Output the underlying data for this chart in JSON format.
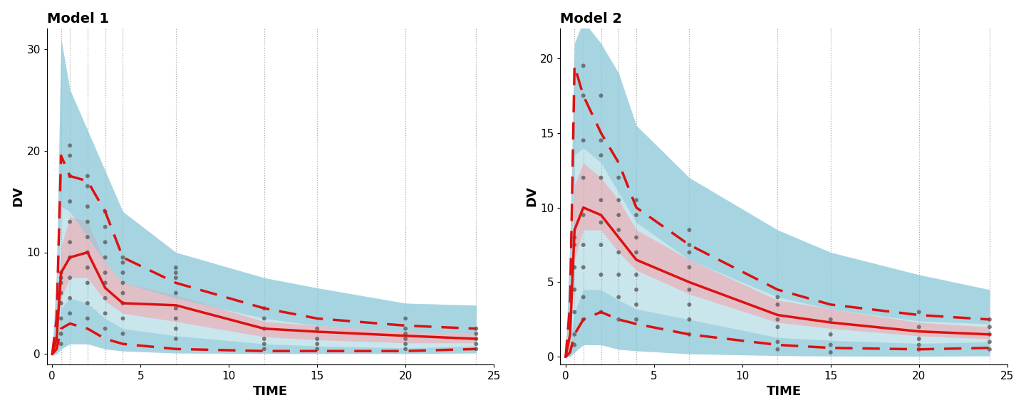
{
  "model1": {
    "title": "Model 1",
    "xlabel": "TIME",
    "ylabel": "DV",
    "ylim": [
      -1,
      32
    ],
    "xlim": [
      -0.3,
      25
    ],
    "yticks": [
      0,
      10,
      20,
      30
    ],
    "xticks": [
      0,
      5,
      10,
      15,
      20,
      25
    ],
    "vlines": [
      0.5,
      1,
      2,
      3,
      4,
      7,
      12,
      15,
      20,
      24
    ],
    "t": [
      0,
      0.25,
      0.5,
      1.0,
      2.0,
      3.0,
      4.0,
      7.0,
      12.0,
      15.0,
      20.0,
      24.0
    ],
    "med_obs": [
      0,
      1.5,
      8.0,
      9.5,
      10.0,
      6.5,
      5.0,
      4.8,
      2.5,
      2.2,
      1.8,
      1.5
    ],
    "q5_obs": [
      0,
      0.5,
      2.5,
      3.0,
      2.5,
      1.5,
      1.0,
      0.5,
      0.3,
      0.3,
      0.3,
      0.5
    ],
    "q95_obs": [
      0,
      3.5,
      19.5,
      17.5,
      17.0,
      14.0,
      9.5,
      7.0,
      4.5,
      3.5,
      2.8,
      2.5
    ],
    "sim_med_lo": [
      0,
      1.0,
      5.5,
      7.5,
      7.5,
      5.2,
      4.0,
      3.2,
      1.7,
      1.4,
      1.1,
      1.1
    ],
    "sim_med_hi": [
      0,
      2.5,
      10.5,
      13.5,
      13.0,
      9.0,
      7.0,
      5.8,
      3.2,
      2.8,
      2.2,
      2.0
    ],
    "sim_q5_lo": [
      0,
      0.0,
      0.5,
      1.0,
      1.0,
      0.5,
      0.3,
      0.1,
      0.05,
      0.05,
      0.05,
      0.1
    ],
    "sim_q5_hi": [
      0,
      1.2,
      4.5,
      5.5,
      5.0,
      3.5,
      2.5,
      1.8,
      1.0,
      0.8,
      0.6,
      0.8
    ],
    "sim_q95_lo": [
      0,
      3.0,
      14.5,
      14.0,
      11.5,
      9.0,
      7.0,
      5.5,
      3.5,
      2.8,
      2.2,
      2.0
    ],
    "sim_q95_hi": [
      0,
      8.0,
      31.0,
      26.0,
      22.0,
      18.0,
      14.0,
      10.0,
      7.5,
      6.5,
      5.0,
      4.8
    ],
    "scatter_x": [
      0.5,
      0.5,
      0.5,
      0.5,
      0.5,
      0.5,
      0.5,
      0.5,
      1,
      1,
      1,
      1,
      1,
      1,
      1,
      1,
      1,
      1,
      2,
      2,
      2,
      2,
      2,
      2,
      2,
      2,
      2,
      2,
      3,
      3,
      3,
      3,
      3,
      3,
      3,
      3,
      3,
      4,
      4,
      4,
      4,
      4,
      4,
      4,
      4,
      7,
      7,
      7,
      7,
      7,
      7,
      7,
      7,
      12,
      12,
      12,
      12,
      12,
      12,
      15,
      15,
      15,
      15,
      20,
      20,
      20,
      20,
      20,
      20,
      24,
      24,
      24,
      24,
      24
    ],
    "scatter_y": [
      1.0,
      2.0,
      3.5,
      5.0,
      6.0,
      7.0,
      7.5,
      8.0,
      4.0,
      5.5,
      7.5,
      9.5,
      11.0,
      13.0,
      15.0,
      17.5,
      19.5,
      20.5,
      3.5,
      5.0,
      7.0,
      8.5,
      10.0,
      11.5,
      13.0,
      14.5,
      16.5,
      17.5,
      2.5,
      4.0,
      5.5,
      7.0,
      8.0,
      9.5,
      11.0,
      12.5,
      14.0,
      2.0,
      3.5,
      5.0,
      6.0,
      7.0,
      8.0,
      9.0,
      9.5,
      1.5,
      2.5,
      3.5,
      4.5,
      6.0,
      7.5,
      8.0,
      8.5,
      0.5,
      1.0,
      1.5,
      2.5,
      3.5,
      4.5,
      0.5,
      1.0,
      1.5,
      2.5,
      0.5,
      1.0,
      1.5,
      2.0,
      2.5,
      3.5,
      0.5,
      1.0,
      1.5,
      2.0,
      2.5
    ]
  },
  "model2": {
    "title": "Model 2",
    "xlabel": "TIME",
    "ylabel": "DV",
    "ylim": [
      -0.5,
      22
    ],
    "xlim": [
      -0.3,
      25
    ],
    "yticks": [
      0,
      5,
      10,
      15,
      20
    ],
    "xticks": [
      0,
      5,
      10,
      15,
      20,
      25
    ],
    "vlines": [
      0.5,
      1,
      2,
      3,
      4,
      7,
      12,
      15,
      20,
      24
    ],
    "t": [
      0,
      0.25,
      0.5,
      1.0,
      2.0,
      3.0,
      4.0,
      7.0,
      12.0,
      15.0,
      20.0,
      24.0
    ],
    "med_obs": [
      0,
      1.5,
      8.5,
      10.0,
      9.5,
      8.0,
      6.5,
      5.0,
      2.8,
      2.3,
      1.7,
      1.5
    ],
    "q5_obs": [
      0,
      0.3,
      1.5,
      2.5,
      3.0,
      2.5,
      2.2,
      1.5,
      0.8,
      0.6,
      0.5,
      0.6
    ],
    "q95_obs": [
      0,
      3.5,
      19.5,
      17.5,
      15.0,
      13.0,
      10.0,
      7.5,
      4.5,
      3.5,
      2.8,
      2.5
    ],
    "sim_med_lo": [
      0,
      0.8,
      6.5,
      8.5,
      8.5,
      7.0,
      5.8,
      4.2,
      2.3,
      1.9,
      1.4,
      1.2
    ],
    "sim_med_hi": [
      0,
      2.5,
      11.5,
      13.0,
      12.0,
      10.5,
      8.5,
      6.5,
      3.8,
      3.2,
      2.3,
      2.0
    ],
    "sim_q5_lo": [
      0,
      0.0,
      0.3,
      0.8,
      0.8,
      0.5,
      0.4,
      0.2,
      0.08,
      0.05,
      0.04,
      0.06
    ],
    "sim_q5_hi": [
      0,
      0.8,
      3.0,
      4.5,
      4.5,
      3.8,
      3.2,
      2.5,
      1.3,
      1.1,
      0.9,
      1.0
    ],
    "sim_q95_lo": [
      0,
      3.5,
      13.5,
      14.0,
      13.0,
      11.0,
      9.0,
      6.5,
      4.0,
      3.2,
      2.4,
      2.2
    ],
    "sim_q95_hi": [
      0,
      8.0,
      21.0,
      22.5,
      21.0,
      19.0,
      15.5,
      12.0,
      8.5,
      7.0,
      5.5,
      4.5
    ],
    "scatter_x": [
      0.5,
      0.5,
      0.5,
      0.5,
      0.5,
      0.5,
      0.5,
      1,
      1,
      1,
      1,
      1,
      1,
      1,
      1,
      1,
      2,
      2,
      2,
      2,
      2,
      2,
      2,
      2,
      2,
      3,
      3,
      3,
      3,
      3,
      3,
      3,
      3,
      4,
      4,
      4,
      4,
      4,
      4,
      4,
      4,
      7,
      7,
      7,
      7,
      7,
      7,
      7,
      7,
      12,
      12,
      12,
      12,
      12,
      12,
      15,
      15,
      15,
      15,
      20,
      20,
      20,
      20,
      20,
      24,
      24,
      24,
      24,
      24
    ],
    "scatter_y": [
      0.8,
      1.5,
      3.0,
      4.5,
      6.0,
      7.5,
      8.0,
      2.5,
      4.0,
      6.0,
      7.5,
      9.5,
      12.0,
      14.5,
      17.5,
      19.5,
      3.0,
      5.5,
      7.5,
      9.0,
      10.5,
      12.0,
      13.5,
      14.5,
      17.5,
      2.5,
      4.0,
      5.5,
      7.0,
      8.5,
      9.5,
      10.5,
      12.0,
      2.5,
      3.5,
      4.5,
      5.5,
      7.0,
      8.0,
      9.5,
      10.5,
      1.5,
      2.5,
      3.5,
      4.5,
      6.0,
      7.0,
      7.5,
      8.5,
      0.5,
      1.0,
      2.0,
      2.5,
      3.5,
      4.0,
      0.3,
      0.8,
      1.5,
      2.5,
      0.5,
      0.8,
      1.2,
      2.0,
      3.0,
      0.5,
      1.0,
      1.5,
      2.0,
      2.5
    ]
  },
  "colors": {
    "blue_fill": "#8ac8d8",
    "pink_fill": "#f4a0a8",
    "red_line": "#dd1111",
    "scatter": "#636363",
    "vline": "#aaaaaa"
  }
}
